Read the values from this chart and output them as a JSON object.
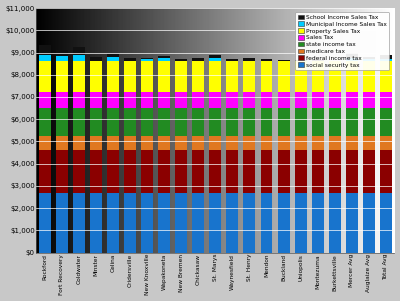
{
  "categories": [
    "Rockford",
    "Fort Recovery",
    "Coldwater",
    "Minster",
    "Celina",
    "Cridersville",
    "New Knoxville",
    "Wapakoneta",
    "New Bremen",
    "Chickasaw",
    "St. Marys",
    "Waynesfield",
    "St. Henry",
    "Mendon",
    "Buckland",
    "Uniopolis",
    "Montezuma",
    "Burkettsville",
    "Mercer Avg",
    "Auglaize Avg",
    "Total Avg"
  ],
  "layer_order": [
    "social security tax",
    "federal income tax",
    "medicare tax",
    "state income tax",
    "Sales Tax",
    "Property Sales Tax",
    "Municipal Income Sales Tax",
    "School Income Sales Tax"
  ],
  "series": {
    "social security tax": [
      2669,
      2669,
      2669,
      2669,
      2669,
      2669,
      2669,
      2669,
      2669,
      2669,
      2669,
      2669,
      2669,
      2669,
      2669,
      2669,
      2669,
      2669,
      2669,
      2669,
      2669
    ],
    "federal income tax": [
      1964,
      1964,
      1964,
      1964,
      1964,
      1964,
      1964,
      1964,
      1964,
      1964,
      1964,
      1964,
      1964,
      1964,
      1964,
      1964,
      1964,
      1964,
      1964,
      1964,
      1964
    ],
    "medicare tax": [
      624,
      624,
      624,
      624,
      624,
      624,
      624,
      624,
      624,
      624,
      624,
      624,
      624,
      624,
      624,
      624,
      624,
      624,
      624,
      624,
      624
    ],
    "state income tax": [
      1247,
      1247,
      1247,
      1247,
      1247,
      1247,
      1247,
      1247,
      1247,
      1247,
      1247,
      1247,
      1247,
      1247,
      1247,
      1247,
      1247,
      1247,
      1247,
      1247,
      1247
    ],
    "Sales Tax": [
      700,
      700,
      700,
      700,
      700,
      700,
      700,
      700,
      700,
      700,
      700,
      700,
      700,
      700,
      700,
      700,
      700,
      700,
      700,
      700,
      700
    ],
    "Property Sales Tax": [
      1400,
      1400,
      1400,
      1400,
      1400,
      1400,
      1400,
      1400,
      1400,
      1400,
      1400,
      1400,
      1400,
      1400,
      1400,
      1400,
      1400,
      1400,
      1400,
      1400,
      1400
    ],
    "Municipal Income Sales Tax": [
      290,
      250,
      265,
      0,
      175,
      0,
      85,
      155,
      0,
      0,
      165,
      0,
      0,
      0,
      0,
      0,
      0,
      0,
      165,
      85,
      125
    ],
    "School Income Sales Tax": [
      440,
      280,
      370,
      215,
      165,
      140,
      75,
      75,
      105,
      140,
      125,
      85,
      155,
      105,
      45,
      45,
      75,
      35,
      215,
      95,
      165
    ]
  },
  "colors": {
    "social security tax": "#1874cd",
    "federal income tax": "#8b0000",
    "medicare tax": "#e07820",
    "state income tax": "#228b22",
    "Sales Tax": "#ff00ff",
    "Property Sales Tax": "#ffff00",
    "Municipal Income Sales Tax": "#00ccff",
    "School Income Sales Tax": "#111111"
  },
  "ylim": [
    0,
    11000
  ],
  "yticks": [
    0,
    1000,
    2000,
    3000,
    4000,
    5000,
    6000,
    7000,
    8000,
    9000,
    10000,
    11000
  ],
  "ytick_labels": [
    "$0",
    "$1,000",
    "$2,000",
    "$3,000",
    "$4,000",
    "$5,000",
    "$6,000",
    "$7,000",
    "$8,000",
    "$9,000",
    "$10,000",
    "$11,000"
  ]
}
